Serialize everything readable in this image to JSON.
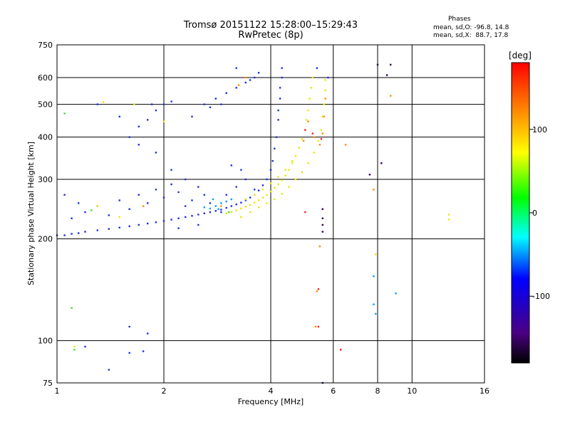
{
  "header": {
    "title_line1": "Tromsø 20151122 15:28:00–15:29:43",
    "title_line2": "RwPretec (8p)",
    "stats_title": "Phases",
    "stats_o": "mean, sd,O: -96.8, 14.8",
    "stats_x": "mean, sd,X:  88.7, 17.8"
  },
  "chart_data": {
    "type": "scatter",
    "xlabel": "Frequency [MHz]",
    "ylabel": "Stationary phase Virtual Height [km]",
    "x_scale": "log",
    "y_scale": "log",
    "xlim": [
      1,
      16
    ],
    "ylim": [
      75,
      750
    ],
    "x_ticks": [
      1,
      2,
      4,
      6,
      8,
      10,
      16
    ],
    "y_ticks": [
      75,
      100,
      200,
      300,
      400,
      500,
      600,
      750
    ],
    "grid": true,
    "colorbar": {
      "label": "[deg]",
      "ticks": [
        100,
        0,
        -100
      ],
      "range": [
        -180,
        180
      ],
      "colormap": [
        "#000000",
        "#4b0082",
        "#0000ff",
        "#00ffff",
        "#00ff00",
        "#ffff00",
        "#ff7f00",
        "#ff0000"
      ]
    },
    "series": [
      {
        "color": "#2030e0",
        "points": [
          [
            1.0,
            205
          ],
          [
            1.05,
            205
          ],
          [
            1.1,
            207
          ],
          [
            1.15,
            208
          ],
          [
            1.2,
            210
          ],
          [
            1.3,
            212
          ],
          [
            1.4,
            214
          ],
          [
            1.5,
            216
          ],
          [
            1.6,
            218
          ],
          [
            1.7,
            220
          ],
          [
            1.8,
            222
          ],
          [
            1.9,
            224
          ],
          [
            2.0,
            226
          ],
          [
            2.1,
            228
          ],
          [
            2.2,
            230
          ],
          [
            2.3,
            232
          ],
          [
            2.4,
            234
          ],
          [
            2.5,
            236
          ],
          [
            2.6,
            238
          ],
          [
            2.7,
            240
          ],
          [
            2.8,
            242
          ],
          [
            2.9,
            244
          ],
          [
            3.0,
            247
          ],
          [
            3.1,
            250
          ],
          [
            3.2,
            253
          ],
          [
            3.3,
            256
          ],
          [
            3.4,
            260
          ],
          [
            3.5,
            265
          ],
          [
            3.6,
            270
          ],
          [
            3.7,
            278
          ],
          [
            3.8,
            288
          ],
          [
            3.9,
            300
          ],
          [
            4.0,
            320
          ],
          [
            4.05,
            340
          ],
          [
            4.1,
            370
          ],
          [
            4.15,
            400
          ],
          [
            4.2,
            450
          ],
          [
            4.25,
            520
          ],
          [
            4.3,
            600
          ],
          [
            4.3,
            640
          ],
          [
            4.25,
            560
          ],
          [
            4.2,
            480
          ],
          [
            1.1,
            230
          ],
          [
            1.2,
            240
          ],
          [
            1.3,
            250
          ],
          [
            1.4,
            235
          ],
          [
            1.5,
            260
          ],
          [
            1.6,
            245
          ],
          [
            1.7,
            270
          ],
          [
            1.8,
            255
          ],
          [
            1.9,
            280
          ],
          [
            2.0,
            265
          ],
          [
            2.1,
            290
          ],
          [
            2.2,
            275
          ],
          [
            2.3,
            250
          ],
          [
            2.4,
            260
          ],
          [
            2.5,
            285
          ],
          [
            2.6,
            270
          ],
          [
            2.7,
            255
          ],
          [
            2.9,
            240
          ],
          [
            3.0,
            270
          ],
          [
            3.2,
            285
          ],
          [
            3.4,
            300
          ],
          [
            3.6,
            280
          ],
          [
            1.6,
            400
          ],
          [
            1.7,
            430
          ],
          [
            1.8,
            450
          ],
          [
            1.9,
            480
          ],
          [
            2.0,
            500
          ],
          [
            1.85,
            500
          ],
          [
            2.1,
            510
          ],
          [
            2.6,
            500
          ],
          [
            2.7,
            490
          ],
          [
            2.8,
            520
          ],
          [
            2.9,
            500
          ],
          [
            3.0,
            540
          ],
          [
            3.2,
            560
          ],
          [
            3.4,
            580
          ],
          [
            3.5,
            590
          ],
          [
            3.6,
            600
          ],
          [
            3.7,
            620
          ],
          [
            3.2,
            640
          ],
          [
            2.4,
            460
          ],
          [
            1.3,
            500
          ],
          [
            1.5,
            460
          ],
          [
            1.7,
            380
          ],
          [
            1.9,
            360
          ],
          [
            2.1,
            320
          ],
          [
            2.3,
            300
          ],
          [
            3.1,
            330
          ],
          [
            3.3,
            320
          ],
          [
            1.6,
            110
          ],
          [
            1.8,
            105
          ],
          [
            1.2,
            96
          ],
          [
            1.6,
            92
          ],
          [
            1.4,
            82
          ],
          [
            1.75,
            93
          ],
          [
            5.4,
            640
          ],
          [
            5.8,
            600
          ],
          [
            1.05,
            270
          ],
          [
            1.15,
            255
          ],
          [
            2.5,
            220
          ],
          [
            2.2,
            215
          ]
        ]
      },
      {
        "color": "#00a0ff",
        "points": [
          [
            2.6,
            248
          ],
          [
            2.7,
            246
          ],
          [
            2.8,
            250
          ],
          [
            2.9,
            255
          ],
          [
            2.75,
            262
          ],
          [
            3.0,
            258
          ],
          [
            3.1,
            262
          ],
          [
            2.85,
            245
          ],
          [
            7.8,
            155
          ],
          [
            7.8,
            128
          ],
          [
            7.9,
            120
          ],
          [
            9.0,
            138
          ]
        ]
      },
      {
        "color": "#e8e800",
        "points": [
          [
            3.0,
            238
          ],
          [
            3.1,
            240
          ],
          [
            3.2,
            243
          ],
          [
            3.3,
            246
          ],
          [
            3.4,
            249
          ],
          [
            3.5,
            252
          ],
          [
            3.6,
            256
          ],
          [
            3.7,
            260
          ],
          [
            3.8,
            265
          ],
          [
            3.9,
            270
          ],
          [
            4.0,
            276
          ],
          [
            4.1,
            283
          ],
          [
            4.2,
            290
          ],
          [
            4.3,
            298
          ],
          [
            4.4,
            308
          ],
          [
            4.5,
            320
          ],
          [
            4.6,
            335
          ],
          [
            4.7,
            352
          ],
          [
            4.8,
            372
          ],
          [
            4.9,
            395
          ],
          [
            5.0,
            420
          ],
          [
            5.05,
            450
          ],
          [
            5.1,
            480
          ],
          [
            5.15,
            520
          ],
          [
            5.2,
            560
          ],
          [
            5.25,
            600
          ],
          [
            3.3,
            232
          ],
          [
            3.5,
            240
          ],
          [
            3.7,
            248
          ],
          [
            3.9,
            255
          ],
          [
            4.1,
            262
          ],
          [
            4.3,
            272
          ],
          [
            4.5,
            285
          ],
          [
            4.7,
            300
          ],
          [
            4.9,
            315
          ],
          [
            5.1,
            335
          ],
          [
            5.3,
            360
          ],
          [
            5.45,
            390
          ],
          [
            5.55,
            420
          ],
          [
            5.6,
            460
          ],
          [
            5.65,
            500
          ],
          [
            5.7,
            550
          ],
          [
            5.7,
            590
          ],
          [
            3.4,
            262
          ],
          [
            3.6,
            270
          ],
          [
            3.8,
            280
          ],
          [
            4.0,
            292
          ],
          [
            4.2,
            305
          ],
          [
            4.4,
            320
          ],
          [
            4.6,
            340
          ],
          [
            1.3,
            250
          ],
          [
            1.5,
            232
          ],
          [
            1.65,
            500
          ],
          [
            1.35,
            508
          ],
          [
            2.0,
            445
          ],
          [
            12.7,
            236
          ],
          [
            12.7,
            228
          ],
          [
            1.1,
            125
          ],
          [
            1.12,
            96
          ],
          [
            7.9,
            180
          ]
        ]
      },
      {
        "color": "#ff8c00",
        "points": [
          [
            5.1,
            445
          ],
          [
            5.3,
            400
          ],
          [
            5.5,
            380
          ],
          [
            5.6,
            410
          ],
          [
            5.65,
            460
          ],
          [
            4.95,
            390
          ],
          [
            5.7,
            520
          ],
          [
            3.4,
            600
          ],
          [
            3.25,
            570
          ],
          [
            5.35,
            110
          ],
          [
            5.4,
            140
          ],
          [
            5.5,
            190
          ],
          [
            7.8,
            280
          ],
          [
            8.7,
            530
          ],
          [
            6.5,
            380
          ],
          [
            2.9,
            250
          ],
          [
            1.75,
            250
          ],
          [
            6.3,
            94
          ]
        ]
      },
      {
        "color": "#ff2020",
        "points": [
          [
            5.0,
            420
          ],
          [
            5.25,
            410
          ],
          [
            5.55,
            395
          ],
          [
            5.0,
            240
          ],
          [
            5.45,
            110
          ],
          [
            5.45,
            142
          ],
          [
            6.3,
            94
          ]
        ]
      },
      {
        "color": "#40e040",
        "points": [
          [
            1.05,
            470
          ],
          [
            1.1,
            125
          ],
          [
            1.12,
            94
          ],
          [
            1.25,
            243
          ],
          [
            3.05,
            240
          ]
        ]
      },
      {
        "color": "#300060",
        "points": [
          [
            5.6,
            245
          ],
          [
            5.6,
            230
          ],
          [
            5.6,
            220
          ],
          [
            5.6,
            210
          ],
          [
            5.6,
            75
          ],
          [
            7.6,
            310
          ],
          [
            8.2,
            335
          ],
          [
            8.0,
            655
          ],
          [
            8.7,
            655
          ],
          [
            8.5,
            610
          ]
        ]
      }
    ]
  }
}
